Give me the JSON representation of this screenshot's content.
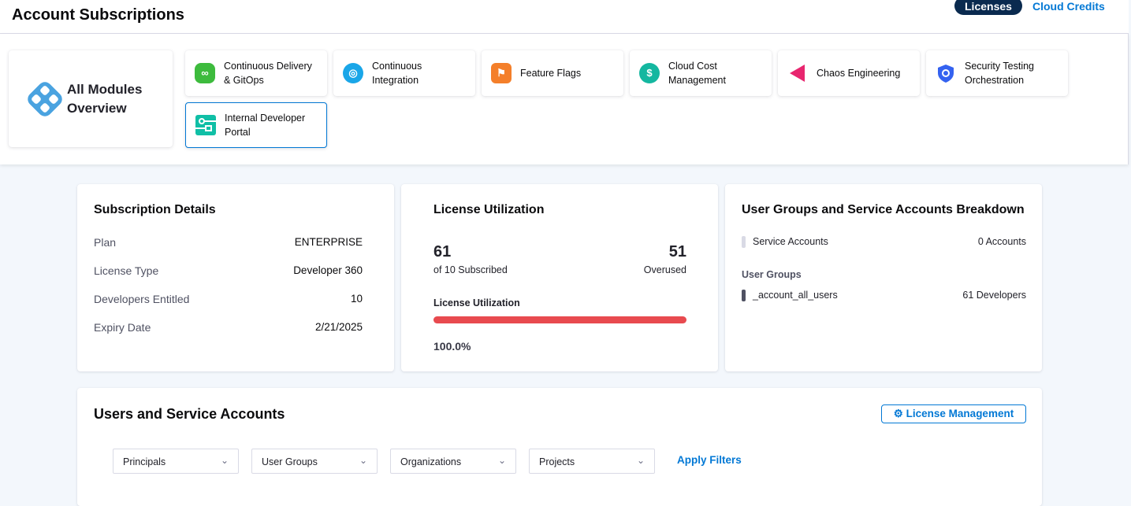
{
  "header": {
    "title": "Account Subscriptions",
    "tabs": [
      {
        "label": "Licenses",
        "active": true
      },
      {
        "label": "Cloud Credits",
        "active": false
      }
    ]
  },
  "modules": {
    "all": {
      "line1": "All Modules",
      "line2": "Overview",
      "icon": "harness-logo-icon"
    },
    "items": [
      {
        "line1": "Continuous Delivery",
        "line2": "& GitOps",
        "icon": "cd-icon",
        "color": "#3dbb3d"
      },
      {
        "line1": "Continuous",
        "line2": "Integration",
        "icon": "ci-icon",
        "color": "#1aa6e8"
      },
      {
        "line1": "Feature Flags",
        "line2": "",
        "icon": "flag-icon",
        "color": "#f47f2a"
      },
      {
        "line1": "Cloud Cost",
        "line2": "Management",
        "icon": "cloud-cost-icon",
        "color": "#14b7a0"
      },
      {
        "line1": "Chaos Engineering",
        "line2": "",
        "icon": "chaos-icon",
        "color": "#e8266f"
      },
      {
        "line1": "Security Testing",
        "line2": "Orchestration",
        "icon": "shield-icon",
        "color": "#3462f0"
      },
      {
        "line1": "Internal Developer",
        "line2": "Portal",
        "icon": "idp-icon",
        "color": "#10bfa6",
        "selected": true
      }
    ]
  },
  "subscription": {
    "title": "Subscription Details",
    "rows": [
      {
        "label": "Plan",
        "value": "ENTERPRISE"
      },
      {
        "label": "License Type",
        "value": "Developer 360"
      },
      {
        "label": "Developers Entitled",
        "value": "10"
      },
      {
        "label": "Expiry Date",
        "value": "2/21/2025"
      }
    ]
  },
  "utilization": {
    "title": "License Utilization",
    "used": "61",
    "used_label": "of 10 Subscribed",
    "overused": "51",
    "overused_label": "Overused",
    "bar_label": "License Utilization",
    "percent_text": "100.0%",
    "percent": 100,
    "bar_color": "#e84a4f"
  },
  "breakdown": {
    "title": "User Groups and Service Accounts Breakdown",
    "service_label": "Service Accounts",
    "service_value": "0 Accounts",
    "groups_heading": "User Groups",
    "groups": [
      {
        "name": "_account_all_users",
        "value": "61 Developers"
      }
    ]
  },
  "users": {
    "title": "Users and Service Accounts",
    "license_btn": "License Management",
    "filters": [
      "Principals",
      "User Groups",
      "Organizations",
      "Projects"
    ],
    "apply": "Apply Filters"
  }
}
